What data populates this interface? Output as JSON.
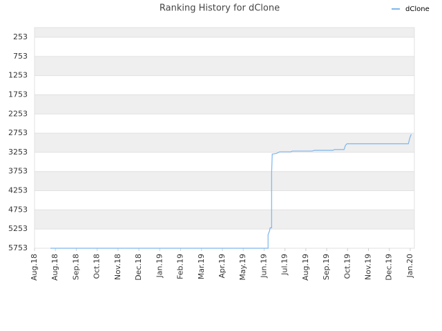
{
  "chart_data": {
    "type": "line",
    "title": "Ranking History for dClone",
    "x": [
      0.76,
      11.19,
      11.19,
      11.26,
      11.29,
      11.36,
      11.36,
      11.39,
      11.59,
      11.75,
      12.28,
      12.35,
      13.31,
      13.41,
      14.3,
      14.37,
      14.83,
      14.9,
      14.97,
      17.91,
      17.98,
      18.05
    ],
    "series": [
      {
        "name": "dClone",
        "color": "#7cb5ec",
        "values": [
          5753,
          5753,
          5400,
          5300,
          5220,
          5220,
          3800,
          3300,
          3280,
          3240,
          3240,
          3220,
          3220,
          3200,
          3200,
          3180,
          3180,
          3070,
          3030,
          3030,
          2880,
          2780
        ]
      }
    ],
    "xlim": [
      0,
      18.2
    ],
    "xticks": [
      {
        "value": 0,
        "label": "Aug.18"
      },
      {
        "value": 1,
        "label": "Aug.18"
      },
      {
        "value": 2,
        "label": "Sep.18"
      },
      {
        "value": 3,
        "label": "Oct.18"
      },
      {
        "value": 4,
        "label": "Nov.18"
      },
      {
        "value": 5,
        "label": "Dec.18"
      },
      {
        "value": 6,
        "label": "Jan.19"
      },
      {
        "value": 7,
        "label": "Feb.19"
      },
      {
        "value": 8,
        "label": "Mar.19"
      },
      {
        "value": 9,
        "label": "Apr.19"
      },
      {
        "value": 10,
        "label": "May.19"
      },
      {
        "value": 11,
        "label": "Jun.19"
      },
      {
        "value": 12,
        "label": "Jul.19"
      },
      {
        "value": 13,
        "label": "Aug.19"
      },
      {
        "value": 14,
        "label": "Sep.19"
      },
      {
        "value": 15,
        "label": "Oct.19"
      },
      {
        "value": 16,
        "label": "Nov.19"
      },
      {
        "value": 17,
        "label": "Dec.19"
      },
      {
        "value": 18,
        "label": "Jan.20"
      }
    ],
    "ylim": [
      5753,
      1
    ],
    "yticks": [
      253,
      753,
      1253,
      1753,
      2253,
      2753,
      3253,
      3753,
      4253,
      4753,
      5253,
      5753
    ],
    "banded_grid": true,
    "legend": "top-right"
  }
}
